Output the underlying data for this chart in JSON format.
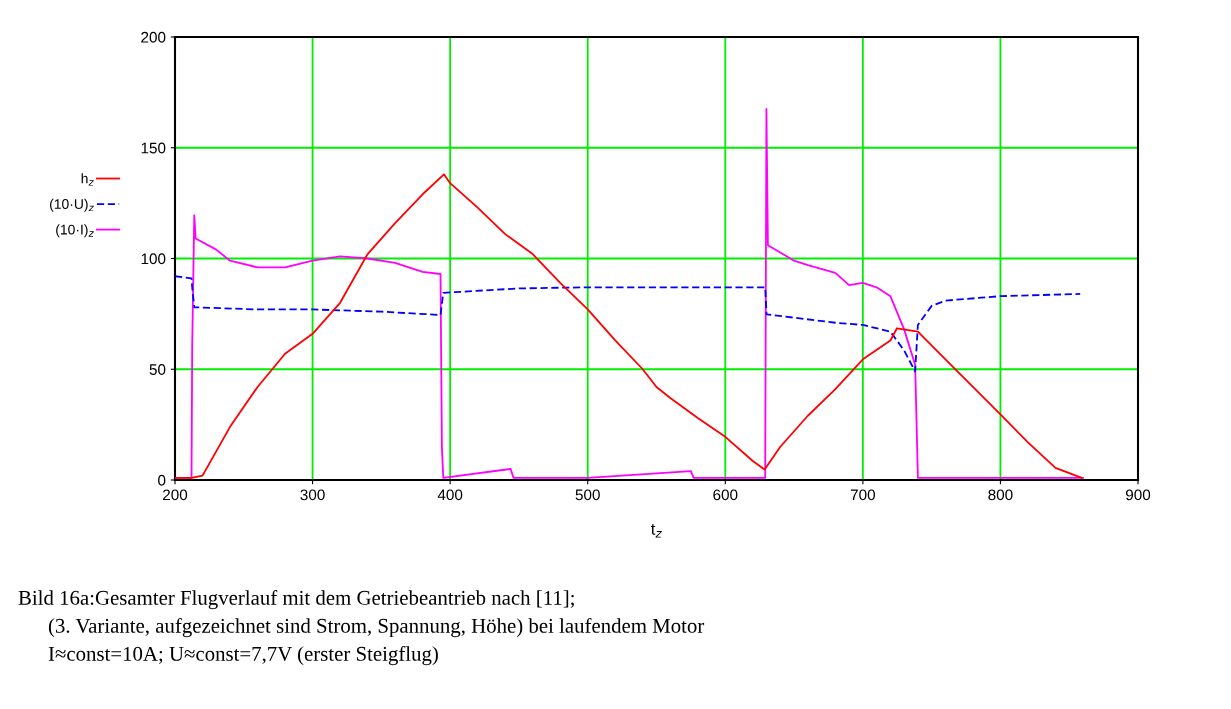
{
  "chart_data": {
    "type": "line",
    "xlabel": "t$_{z}$",
    "xlim": [
      200,
      900
    ],
    "xticks": [
      200,
      300,
      400,
      500,
      600,
      700,
      800,
      900
    ],
    "ylim": [
      0,
      200
    ],
    "yticks": [
      0,
      50,
      100,
      150,
      200
    ],
    "grid": true,
    "legend": "left",
    "marker": "none",
    "series": [
      {
        "name": "h$_{z}$",
        "color": "#ff0000",
        "line_style": "solid",
        "x": [
          200,
          212,
          220,
          240,
          260,
          280,
          300,
          320,
          340,
          360,
          380,
          395.5,
          400,
          420,
          440,
          460,
          480,
          500,
          520,
          540,
          550,
          560,
          580,
          600,
          620,
          628.6,
          640,
          660,
          680,
          700,
          720,
          724.8,
          740,
          760,
          780,
          800,
          820,
          840,
          859
        ],
        "values": [
          1,
          1,
          2,
          24,
          42,
          57,
          66,
          80,
          102,
          116,
          129,
          138,
          134,
          123,
          111,
          102,
          89,
          77,
          63,
          50,
          42,
          37,
          28,
          19.5,
          8.6,
          4.7,
          15,
          29,
          41,
          54.5,
          63,
          68.5,
          67,
          54.5,
          42,
          29.6,
          17,
          5.5,
          1
        ]
      },
      {
        "name": "(10·U)$_{z}$",
        "color": "#0000ff",
        "line_style": "dashed",
        "x": [
          200,
          212,
          212.5,
          214,
          260,
          300,
          350,
          393,
          395,
          450,
          500,
          600,
          629,
          630,
          680,
          700,
          720,
          730,
          738,
          740,
          750,
          760,
          800,
          858
        ],
        "values": [
          92,
          91,
          87,
          78,
          77,
          77,
          76,
          74.5,
          84.5,
          86.5,
          87,
          87,
          87,
          74.8,
          71,
          70,
          67,
          58.5,
          49,
          70,
          78.6,
          81,
          83,
          84
        ]
      },
      {
        "name": "(10·I)$_{z}$",
        "color": "#ff00ff",
        "line_style": "solid",
        "x": [
          200,
          212,
          212.5,
          214,
          215,
          230,
          240,
          260,
          280,
          300,
          320,
          340,
          360,
          380,
          393,
          394,
          395,
          444,
          446,
          500,
          575,
          577,
          629,
          629.9,
          631,
          650,
          660,
          680,
          690,
          700,
          710,
          720,
          730,
          738,
          739,
          740,
          800,
          860
        ],
        "values": [
          1,
          1,
          60,
          119.5,
          109,
          104,
          99,
          96,
          96,
          99,
          101,
          100,
          98,
          94,
          93,
          15,
          1,
          5,
          1,
          1,
          4,
          1,
          1,
          167.5,
          106,
          99,
          97,
          93.5,
          88,
          89,
          87,
          83,
          68,
          52,
          27,
          1,
          1,
          1
        ]
      }
    ],
    "annotations": [
      "Bild 16a:Gesamter Flugverlauf mit dem Getriebeantrieb nach [11];",
      "(3. Variante, aufgezeichnet sind Strom, Spannung, Höhe) bei laufendem Motor",
      "I≈const=10A; U≈const=7,7V (erster Steigflug)"
    ]
  }
}
